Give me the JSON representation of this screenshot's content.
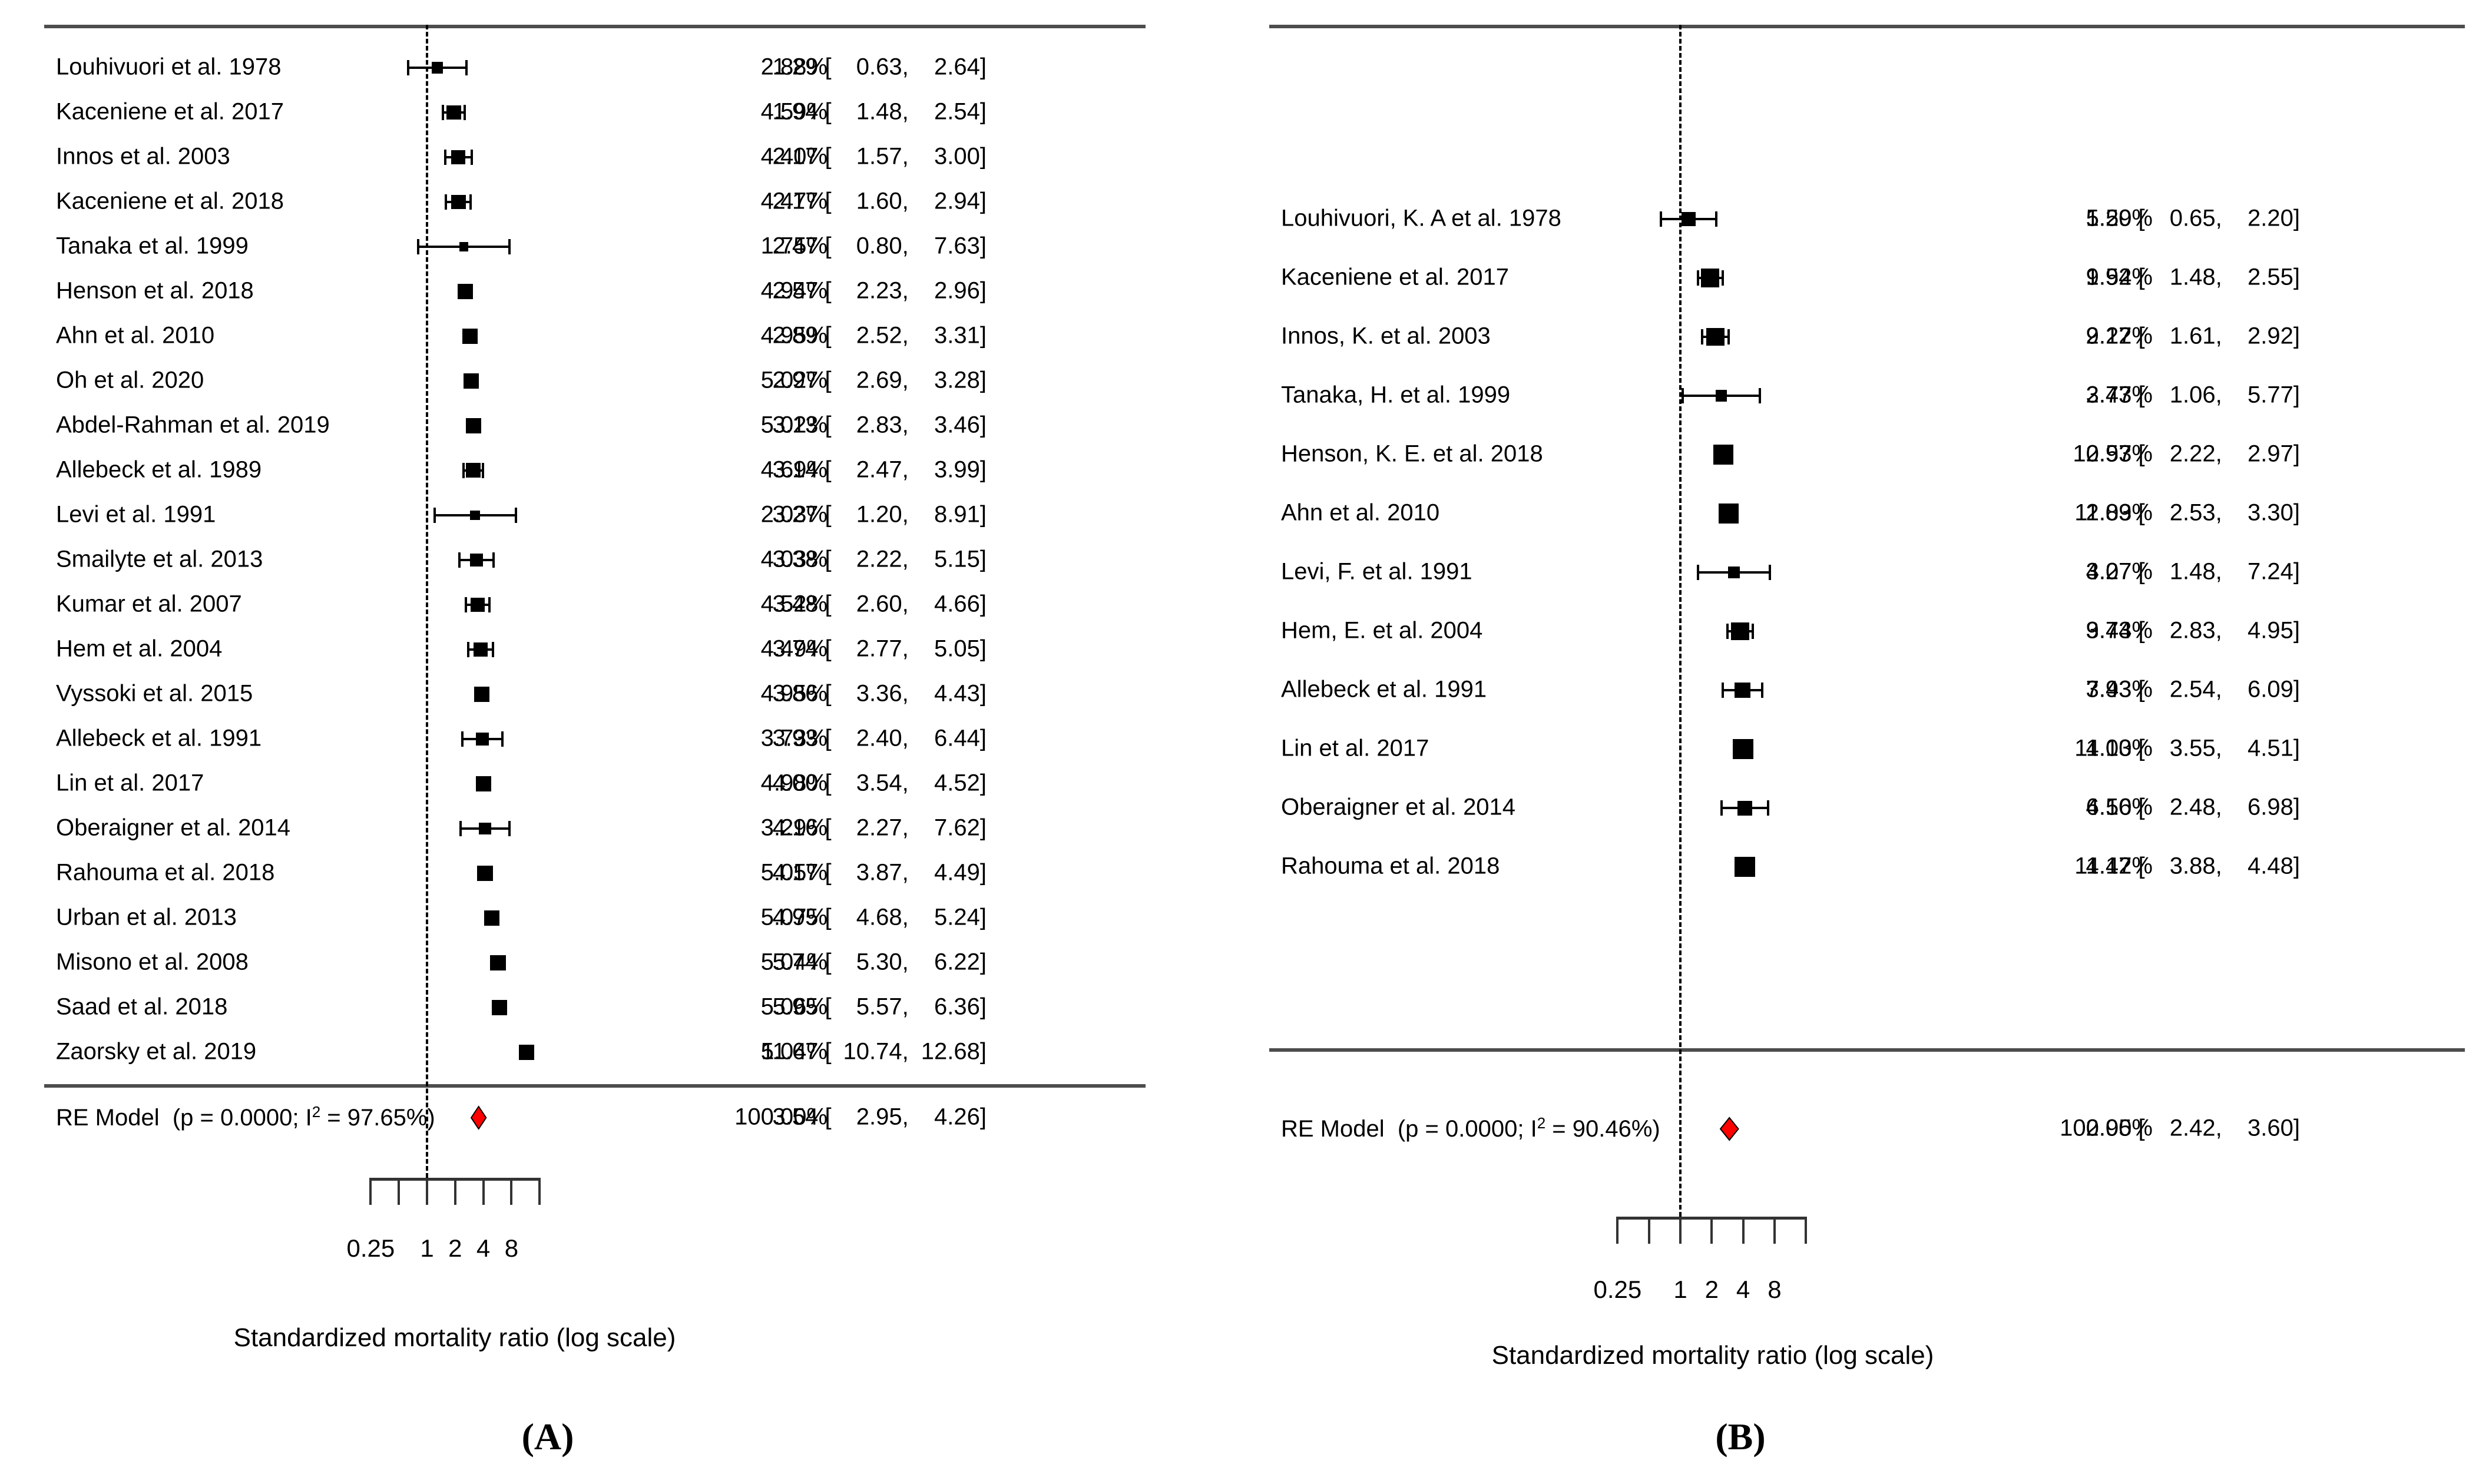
{
  "figure": {
    "axis_label": "Standardized mortality ratio (log scale)",
    "diamond_color": "#ff0000",
    "axis_tick_labels": [
      "0.25",
      "1",
      "2",
      "4",
      "8"
    ],
    "axis_tick_label_values": [
      0.25,
      1,
      2,
      4,
      8
    ],
    "axis_ticks_all": [
      0.25,
      0.5,
      1,
      2,
      4,
      8,
      16
    ]
  },
  "chart_data": [
    {
      "type": "forest",
      "caption": "(A)",
      "xlabel": "Standardized mortality ratio (log scale)",
      "x_scale": "log2",
      "xlim": [
        0.25,
        16
      ],
      "reference_line": 1,
      "columns": {
        "weight": "percent",
        "estimate": "SMR [95% CI]"
      },
      "studies": [
        {
          "label": "Louhivuori et al. 1978",
          "weight": 2.88,
          "est": 1.29,
          "lo": 0.63,
          "hi": 2.64
        },
        {
          "label": "Kaceniene et al. 2017",
          "weight": 4.59,
          "est": 1.94,
          "lo": 1.48,
          "hi": 2.54
        },
        {
          "label": "Innos et al. 2003",
          "weight": 4.4,
          "est": 2.17,
          "lo": 1.57,
          "hi": 3.0
        },
        {
          "label": "Kaceniene et al. 2018",
          "weight": 4.47,
          "est": 2.17,
          "lo": 1.6,
          "hi": 2.94
        },
        {
          "label": "Tanaka et al. 1999",
          "weight": 1.75,
          "est": 2.47,
          "lo": 0.8,
          "hi": 7.63
        },
        {
          "label": "Henson et al. 2018",
          "weight": 4.94,
          "est": 2.57,
          "lo": 2.23,
          "hi": 2.96
        },
        {
          "label": "Ahn et al. 2010",
          "weight": 4.95,
          "est": 2.89,
          "lo": 2.52,
          "hi": 3.31
        },
        {
          "label": "Oh et al. 2020",
          "weight": 5.02,
          "est": 2.97,
          "lo": 2.69,
          "hi": 3.28
        },
        {
          "label": "Abdel-Rahman et al. 2019",
          "weight": 5.02,
          "est": 3.13,
          "lo": 2.83,
          "hi": 3.46
        },
        {
          "label": "Allebeck et al. 1989",
          "weight": 4.69,
          "est": 3.14,
          "lo": 2.47,
          "hi": 3.99
        },
        {
          "label": "Levi et al. 1991",
          "weight": 2.03,
          "est": 3.27,
          "lo": 1.2,
          "hi": 8.91
        },
        {
          "label": "Smailyte et al. 2013",
          "weight": 4.03,
          "est": 3.38,
          "lo": 2.22,
          "hi": 5.15
        },
        {
          "label": "Kumar et al. 2007",
          "weight": 4.52,
          "est": 3.48,
          "lo": 2.6,
          "hi": 4.66
        },
        {
          "label": "Hem et al. 2004",
          "weight": 4.49,
          "est": 3.74,
          "lo": 2.77,
          "hi": 5.05
        },
        {
          "label": "Vyssoki et al. 2015",
          "weight": 4.95,
          "est": 3.86,
          "lo": 3.36,
          "hi": 4.43
        },
        {
          "label": "Allebeck et al. 1991",
          "weight": 3.73,
          "est": 3.93,
          "lo": 2.4,
          "hi": 6.44
        },
        {
          "label": "Lin et al. 2017",
          "weight": 4.98,
          "est": 4.0,
          "lo": 3.54,
          "hi": 4.52
        },
        {
          "label": "Oberaigner et al. 2014",
          "weight": 3.29,
          "est": 4.16,
          "lo": 2.27,
          "hi": 7.62
        },
        {
          "label": "Rahouma et al. 2018",
          "weight": 5.05,
          "est": 4.17,
          "lo": 3.87,
          "hi": 4.49
        },
        {
          "label": "Urban et al. 2013",
          "weight": 5.07,
          "est": 4.95,
          "lo": 4.68,
          "hi": 5.24
        },
        {
          "label": "Misono et al. 2008",
          "weight": 5.04,
          "est": 5.74,
          "lo": 5.3,
          "hi": 6.22
        },
        {
          "label": "Saad et al. 2018",
          "weight": 5.06,
          "est": 5.95,
          "lo": 5.57,
          "hi": 6.36
        },
        {
          "label": "Zaorsky et al. 2019",
          "weight": 5.04,
          "est": 11.67,
          "lo": 10.74,
          "hi": 12.68
        }
      ],
      "re_model": {
        "name": "RE Model",
        "p_text": "p = 0.0000",
        "i2_value": " = 97.65%)",
        "i2_base": "I",
        "i2_sup": "2",
        "open_paren": "(",
        "weight": 100.0,
        "est": 3.54,
        "lo": 2.95,
        "hi": 4.26
      }
    },
    {
      "type": "forest",
      "caption": "(B)",
      "xlabel": "Standardized mortality ratio (log scale)",
      "x_scale": "log2",
      "xlim": [
        0.25,
        16
      ],
      "reference_line": 1,
      "columns": {
        "weight": "percent",
        "estimate": "SMR [95% CI]"
      },
      "studies": [
        {
          "label": "Louhivuori, K. A et al. 1978",
          "weight": 5.59,
          "est": 1.2,
          "lo": 0.65,
          "hi": 2.2
        },
        {
          "label": "Kaceniene et al. 2017",
          "weight": 9.52,
          "est": 1.94,
          "lo": 1.48,
          "hi": 2.55
        },
        {
          "label": "Innos, K. et al. 2003",
          "weight": 9.22,
          "est": 2.17,
          "lo": 1.61,
          "hi": 2.92
        },
        {
          "label": "Tanaka, H. et al. 1999",
          "weight": 3.73,
          "est": 2.47,
          "lo": 1.06,
          "hi": 5.77
        },
        {
          "label": "Henson, K. E. et al. 2018",
          "weight": 10.93,
          "est": 2.57,
          "lo": 2.22,
          "hi": 2.97
        },
        {
          "label": "Ahn et al. 2010",
          "weight": 11.03,
          "est": 2.89,
          "lo": 2.53,
          "hi": 3.3
        },
        {
          "label": "Levi, F. et al. 1991",
          "weight": 4.07,
          "est": 3.27,
          "lo": 1.48,
          "hi": 7.24
        },
        {
          "label": "Hem, E. et al. 2004",
          "weight": 9.43,
          "est": 3.74,
          "lo": 2.83,
          "hi": 4.95
        },
        {
          "label": "Allebeck et al. 1991",
          "weight": 7.43,
          "est": 3.93,
          "lo": 2.54,
          "hi": 6.09
        },
        {
          "label": "Lin et al. 2017",
          "weight": 11.13,
          "est": 4.0,
          "lo": 3.55,
          "hi": 4.51
        },
        {
          "label": "Oberaigner et al. 2014",
          "weight": 6.5,
          "est": 4.16,
          "lo": 2.48,
          "hi": 6.98
        },
        {
          "label": "Rahouma et al. 2018",
          "weight": 11.42,
          "est": 4.17,
          "lo": 3.88,
          "hi": 4.48
        }
      ],
      "re_model": {
        "name": "RE Model",
        "p_text": "p = 0.0000",
        "i2_value": " = 90.46%)",
        "i2_base": "I",
        "i2_sup": "2",
        "open_paren": "(",
        "weight": 100.0,
        "est": 2.95,
        "lo": 2.42,
        "hi": 3.6
      }
    }
  ]
}
